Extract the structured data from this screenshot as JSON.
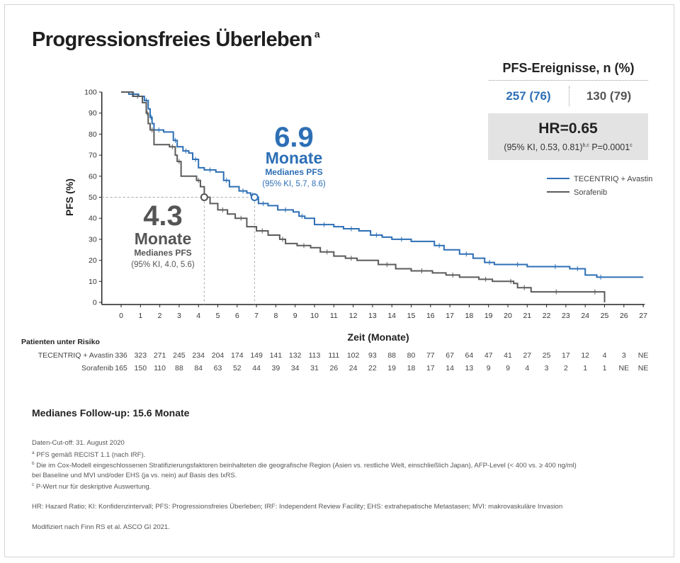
{
  "page": {
    "title": "Progressionsfreies Überleben",
    "title_sup": "a",
    "pfs_header": "PFS-Ereignisse, n (%)",
    "pfs_events_tecentriq": "257 (76)",
    "pfs_events_sorafenib": "130 (79)",
    "hr_main": "HR=0.65",
    "hr_ci_text": "(95% KI, 0.53, 0.81)",
    "hr_ci_sup": "b,c",
    "hr_p_text": " P=0.0001",
    "hr_p_sup": "c",
    "followup": "Medianes Follow-up: 15.6 Monate"
  },
  "annotations": {
    "tecentriq_median_value": "6.9",
    "tecentriq_median_unit": "Monate",
    "tecentriq_median_label": "Medianes PFS",
    "tecentriq_median_ci": "(95% KI, 5.7, 8.6)",
    "sorafenib_median_value": "4.3",
    "sorafenib_median_unit": "Monate",
    "sorafenib_median_label": "Medianes PFS",
    "sorafenib_median_ci": "(95% KI, 4.0, 5.6)"
  },
  "chart_data": {
    "type": "line",
    "step": true,
    "title": "Progressionsfreies Überleben",
    "xlabel": "Zeit (Monate)",
    "ylabel": "PFS (%)",
    "xlim": [
      0,
      27
    ],
    "ylim": [
      0,
      100
    ],
    "x_ticks": [
      0,
      1,
      2,
      3,
      4,
      5,
      6,
      7,
      8,
      9,
      10,
      11,
      12,
      13,
      14,
      15,
      16,
      17,
      18,
      19,
      20,
      21,
      22,
      23,
      24,
      25,
      26,
      27
    ],
    "y_ticks": [
      0,
      10,
      20,
      30,
      40,
      50,
      60,
      70,
      80,
      90,
      100
    ],
    "grid": false,
    "legend_position": "right",
    "series": [
      {
        "name": "TECENTRIQ + Avastin",
        "color": "#2d6fb5",
        "x": [
          0,
          0.4,
          0.9,
          1.2,
          1.4,
          1.5,
          1.6,
          1.7,
          2.2,
          2.7,
          2.9,
          3.2,
          3.5,
          3.7,
          4.0,
          4.3,
          4.9,
          5.3,
          5.6,
          6.1,
          6.5,
          6.7,
          6.9,
          7.1,
          7.6,
          8.1,
          8.9,
          9.2,
          9.5,
          10.0,
          11.0,
          11.5,
          12.3,
          12.9,
          13.5,
          14.0,
          15.0,
          16.2,
          16.7,
          17.5,
          18.2,
          18.8,
          19.3,
          20.0,
          21.0,
          22.0,
          22.9,
          23.2,
          24.0,
          24.6,
          25.0,
          27.0
        ],
        "y": [
          100,
          99,
          98,
          96,
          92,
          88,
          85,
          82,
          81,
          77,
          74,
          72,
          71,
          68,
          64,
          63,
          62,
          58,
          55,
          53,
          52,
          51,
          50,
          47,
          46,
          44,
          43,
          41,
          40,
          37,
          36,
          35,
          34,
          32,
          31,
          30,
          29,
          27,
          25,
          23,
          21,
          19,
          18,
          18,
          17,
          17,
          17,
          16,
          13,
          12,
          12,
          12
        ]
      },
      {
        "name": "Sorafenib",
        "color": "#5b5b5b",
        "x": [
          0,
          0.6,
          1.1,
          1.3,
          1.4,
          1.5,
          1.7,
          2.5,
          2.8,
          2.9,
          3.1,
          3.9,
          4.1,
          4.3,
          4.6,
          5.0,
          5.5,
          5.9,
          6.5,
          7.0,
          7.6,
          8.2,
          8.5,
          9.1,
          9.8,
          10.3,
          11.0,
          11.6,
          12.2,
          13.3,
          14.2,
          15.0,
          16.1,
          16.8,
          17.5,
          18.5,
          19.2,
          20.0,
          20.3,
          20.5,
          21.2,
          22.0,
          23.0,
          24.0,
          25.0,
          25.0
        ],
        "y": [
          100,
          98,
          95,
          90,
          85,
          82,
          75,
          74,
          70,
          67,
          60,
          58,
          55,
          50,
          47,
          44,
          42,
          40,
          36,
          34,
          32,
          30,
          28,
          27,
          26,
          24,
          22,
          21,
          20,
          18,
          16,
          15,
          14,
          13,
          12,
          11,
          10,
          10,
          9,
          7,
          5,
          5,
          5,
          5,
          5,
          0
        ]
      }
    ],
    "risk_table": {
      "title": "Patienten unter Risiko",
      "rows": [
        {
          "label": "TECENTRIQ + Avastin",
          "values": [
            "336",
            "323",
            "271",
            "245",
            "234",
            "204",
            "174",
            "149",
            "141",
            "132",
            "113",
            "111",
            "102",
            "93",
            "88",
            "80",
            "77",
            "67",
            "64",
            "47",
            "41",
            "27",
            "25",
            "17",
            "12",
            "4",
            "3",
            "NE"
          ]
        },
        {
          "label": "Sorafenib",
          "values": [
            "165",
            "150",
            "110",
            "88",
            "84",
            "63",
            "52",
            "44",
            "39",
            "34",
            "31",
            "26",
            "24",
            "22",
            "19",
            "18",
            "17",
            "14",
            "13",
            "9",
            "9",
            "4",
            "3",
            "2",
            "1",
            "1",
            "NE",
            "NE"
          ]
        }
      ]
    }
  },
  "footnotes": [
    {
      "sup": "",
      "text": "Daten-Cut-off: 31. August 2020"
    },
    {
      "sup": "a",
      "text": " PFS gemäß RECIST 1.1 (nach IRF)."
    },
    {
      "sup": "b",
      "text": " Die im Cox-Modell eingeschlossenen Stratifizierungsfaktoren beinhalteten die geografische Region (Asien vs. restliche Welt, einschließlich Japan), AFP-Level (< 400 vs. ≥ 400 ng/ml)"
    },
    {
      "sup": "",
      "text": "   bei Baseline und MVI und/oder EHS (ja vs. nein) auf Basis des IxRS."
    },
    {
      "sup": "c",
      "text": " P-Wert nur für deskriptive Auswertung."
    },
    {
      "sup": "",
      "text": "HR: Hazard Ratio; KI: Konfidenzintervall; PFS: Progressionsfreies Überleben; IRF: Independent Review Facility; EHS: extrahepatische Metastasen; MVI: makrovaskuläre Invasion"
    },
    {
      "sup": "",
      "text": "Modifiziert nach Finn RS et al. ASCO GI 2021."
    }
  ]
}
